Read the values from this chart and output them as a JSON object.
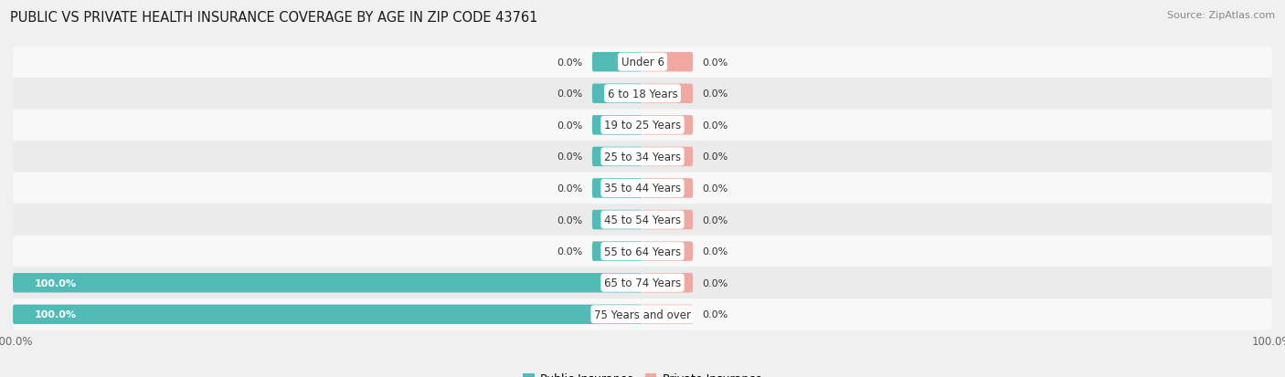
{
  "title": "PUBLIC VS PRIVATE HEALTH INSURANCE COVERAGE BY AGE IN ZIP CODE 43761",
  "source": "Source: ZipAtlas.com",
  "categories": [
    "Under 6",
    "6 to 18 Years",
    "19 to 25 Years",
    "25 to 34 Years",
    "35 to 44 Years",
    "45 to 54 Years",
    "55 to 64 Years",
    "65 to 74 Years",
    "75 Years and over"
  ],
  "public_values": [
    0.0,
    0.0,
    0.0,
    0.0,
    0.0,
    0.0,
    0.0,
    100.0,
    100.0
  ],
  "private_values": [
    0.0,
    0.0,
    0.0,
    0.0,
    0.0,
    0.0,
    0.0,
    0.0,
    0.0
  ],
  "public_color": "#52bbb6",
  "private_color": "#f0a8a0",
  "label_color_dark": "#333333",
  "label_color_light": "#ffffff",
  "background_color": "#f0f0f0",
  "row_bg_light": "#f8f8f8",
  "row_bg_dark": "#ebebeb",
  "xlim_left": -100,
  "xlim_right": 100,
  "bar_height": 0.62,
  "min_bar_width": 8,
  "title_fontsize": 10.5,
  "cat_fontsize": 8.5,
  "val_fontsize": 8.0,
  "tick_fontsize": 8.5,
  "legend_fontsize": 9.0,
  "source_fontsize": 8.0
}
